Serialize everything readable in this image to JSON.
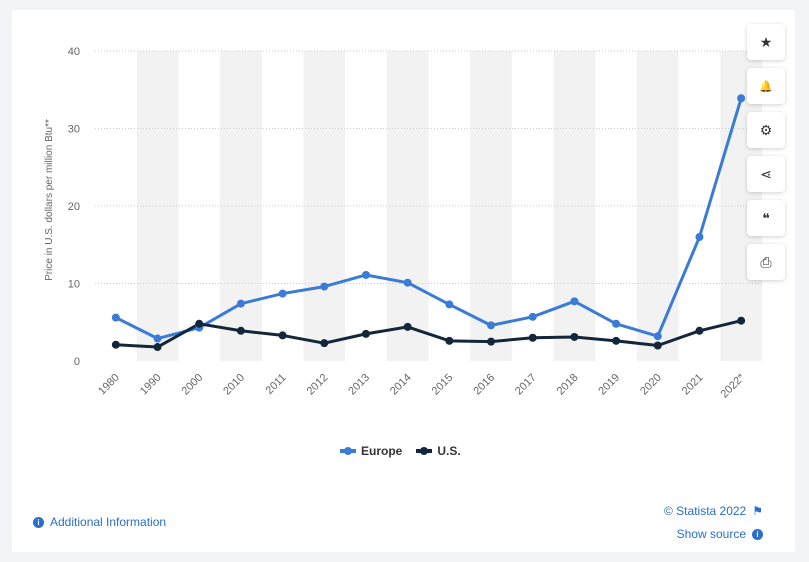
{
  "toolbar": [
    {
      "name": "star-icon",
      "glyph": "★"
    },
    {
      "name": "bell-icon",
      "glyph": "🔔"
    },
    {
      "name": "gear-icon",
      "glyph": "⚙"
    },
    {
      "name": "share-icon",
      "glyph": "⋖"
    },
    {
      "name": "quote-icon",
      "glyph": "❝"
    },
    {
      "name": "print-icon",
      "glyph": "⎙"
    }
  ],
  "footer": {
    "additional_info": "Additional Information",
    "copyright": "© Statista 2022",
    "show_source": "Show source"
  },
  "colors": {
    "europe": "#3a7bd5",
    "us": "#13263a",
    "band": "#f2f2f2",
    "grid": "#cccccc"
  },
  "chart_data": {
    "type": "line",
    "title": "",
    "xlabel": "",
    "ylabel": "Price in U.S. dollars per million Btu**",
    "categories": [
      "1980",
      "1990",
      "2000",
      "2010",
      "2011",
      "2012",
      "2013",
      "2014",
      "2015",
      "2016",
      "2017",
      "2018",
      "2019",
      "2020",
      "2021",
      "2022*"
    ],
    "ylim": [
      0,
      40
    ],
    "yticks": [
      0,
      10,
      20,
      30,
      40
    ],
    "grid": true,
    "legend_position": "bottom",
    "series": [
      {
        "name": "Europe",
        "color": "#3a7bd5",
        "values": [
          5.6,
          2.9,
          4.3,
          7.4,
          8.7,
          9.6,
          11.1,
          10.1,
          7.3,
          4.6,
          5.7,
          7.7,
          4.8,
          3.2,
          16.0,
          33.9
        ]
      },
      {
        "name": "U.S.",
        "color": "#13263a",
        "values": [
          2.1,
          1.8,
          4.8,
          3.9,
          3.3,
          2.3,
          3.5,
          4.4,
          2.6,
          2.5,
          3.0,
          3.1,
          2.6,
          2.0,
          3.9,
          5.2
        ]
      }
    ]
  }
}
